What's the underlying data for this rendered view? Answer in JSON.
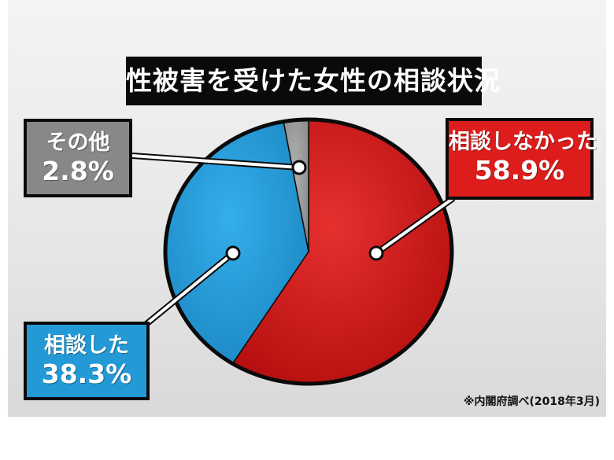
{
  "chart_data": {
    "type": "pie",
    "title": "性被害を受けた女性の相談状況",
    "slices": [
      {
        "label": "相談しなかった",
        "value": 58.9,
        "display": "58.9%",
        "color": "#d61414"
      },
      {
        "label": "相談した",
        "value": 38.3,
        "display": "38.3%",
        "color": "#239ad6"
      },
      {
        "label": "その他",
        "value": 2.8,
        "display": "2.8%",
        "color": "#9a9a9a"
      }
    ],
    "start": "12 o'clock",
    "direction": "clockwise",
    "legend": "callout labels"
  },
  "source_note": "※内閣府調べ(2018年3月)"
}
